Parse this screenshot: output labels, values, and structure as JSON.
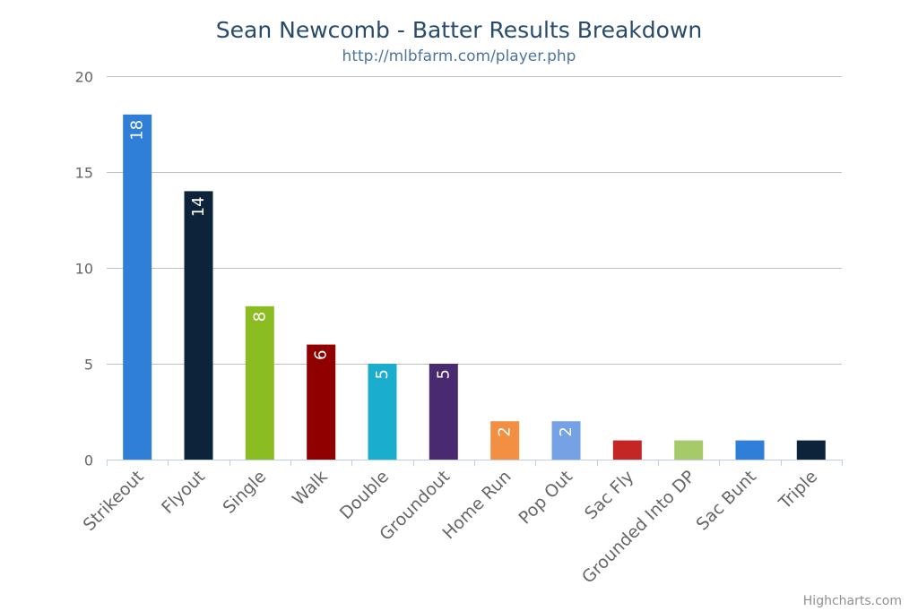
{
  "chart_data": {
    "type": "bar",
    "title": "Sean Newcomb - Batter Results Breakdown",
    "subtitle": "http://mlbfarm.com/player.php",
    "categories": [
      "Strikeout",
      "Flyout",
      "Single",
      "Walk",
      "Double",
      "Groundout",
      "Home Run",
      "Pop Out",
      "Sac Fly",
      "Grounded Into DP",
      "Sac Bunt",
      "Triple"
    ],
    "values": [
      18,
      14,
      8,
      6,
      5,
      5,
      2,
      2,
      1,
      1,
      1,
      1
    ],
    "data_labels": [
      "18",
      "14",
      "8",
      "6",
      "5",
      "5",
      "2",
      "2",
      "",
      "",
      "",
      ""
    ],
    "colors": [
      "#2f7ed8",
      "#0d233a",
      "#8bbc21",
      "#910000",
      "#1aadce",
      "#492970",
      "#f28f43",
      "#77a1e5",
      "#c42525",
      "#a6c96a",
      "#2f7ed8",
      "#0d233a"
    ],
    "ylim": [
      0,
      20
    ],
    "yticks": [
      0,
      5,
      10,
      15,
      20
    ],
    "xlabel": "",
    "ylabel": "",
    "grid": true,
    "legend": "none"
  },
  "credits": "Highcharts.com"
}
